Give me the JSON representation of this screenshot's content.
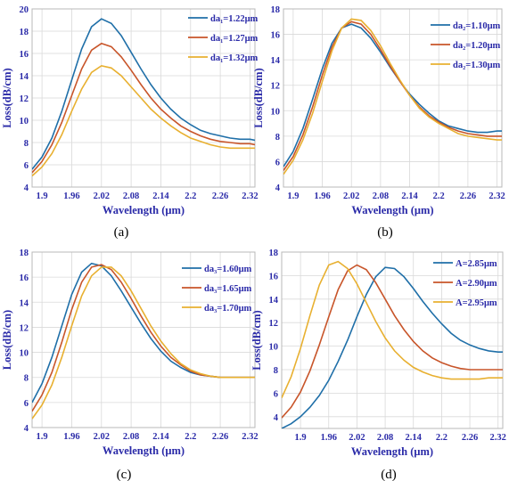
{
  "colors": {
    "series": [
      "#1f6fa8",
      "#c8552a",
      "#e8b030"
    ],
    "text": "#2a2aa8"
  },
  "chart_data": [
    {
      "type": "line",
      "panel_label": "(a)",
      "xlabel": "Wavelength (μm)",
      "ylabel": "Loss(dB/cm)",
      "xlim": [
        1.88,
        2.33
      ],
      "ylim": [
        4,
        20
      ],
      "xticks": [
        1.9,
        1.96,
        2.02,
        2.08,
        2.14,
        2.2,
        2.26,
        2.32
      ],
      "xtick_labels": [
        "1.9",
        "1.96",
        "2.02",
        "2.08",
        "2.14",
        "2.2",
        "2.26",
        "2.32"
      ],
      "yticks": [
        4,
        6,
        8,
        10,
        12,
        14,
        16,
        18,
        20
      ],
      "grid": true,
      "legend_position": "right-top",
      "series": [
        {
          "name": "da₁=1.22μm",
          "x": [
            1.88,
            1.9,
            1.92,
            1.94,
            1.96,
            1.98,
            2.0,
            2.02,
            2.04,
            2.06,
            2.08,
            2.1,
            2.12,
            2.14,
            2.16,
            2.18,
            2.2,
            2.22,
            2.24,
            2.26,
            2.28,
            2.3,
            2.32,
            2.33
          ],
          "y": [
            5.6,
            6.7,
            8.4,
            10.8,
            13.6,
            16.4,
            18.4,
            19.1,
            18.7,
            17.6,
            16.1,
            14.6,
            13.2,
            12.0,
            11.0,
            10.2,
            9.6,
            9.1,
            8.8,
            8.6,
            8.4,
            8.3,
            8.3,
            8.2
          ]
        },
        {
          "name": "da₁=1.27μm",
          "x": [
            1.88,
            1.9,
            1.92,
            1.94,
            1.96,
            1.98,
            2.0,
            2.02,
            2.04,
            2.06,
            2.08,
            2.1,
            2.12,
            2.14,
            2.16,
            2.18,
            2.2,
            2.22,
            2.24,
            2.26,
            2.28,
            2.3,
            2.32,
            2.33
          ],
          "y": [
            5.3,
            6.3,
            7.8,
            9.8,
            12.2,
            14.6,
            16.3,
            16.9,
            16.6,
            15.7,
            14.5,
            13.2,
            12.0,
            11.0,
            10.2,
            9.5,
            9.0,
            8.6,
            8.3,
            8.1,
            8.0,
            7.9,
            7.9,
            7.8
          ]
        },
        {
          "name": "da₁=1.32μm",
          "x": [
            1.88,
            1.9,
            1.92,
            1.94,
            1.96,
            1.98,
            2.0,
            2.02,
            2.04,
            2.06,
            2.08,
            2.1,
            2.12,
            2.14,
            2.16,
            2.18,
            2.2,
            2.22,
            2.24,
            2.26,
            2.28,
            2.3,
            2.32,
            2.33
          ],
          "y": [
            5.0,
            5.8,
            7.0,
            8.7,
            10.8,
            12.8,
            14.3,
            14.9,
            14.7,
            14.0,
            13.0,
            12.0,
            11.0,
            10.2,
            9.5,
            8.9,
            8.4,
            8.1,
            7.8,
            7.6,
            7.5,
            7.5,
            7.5,
            7.5
          ]
        }
      ]
    },
    {
      "type": "line",
      "panel_label": "(b)",
      "xlabel": "Wavelength (μm)",
      "ylabel": "Loss(dB/cm)",
      "xlim": [
        1.88,
        2.33
      ],
      "ylim": [
        4,
        18
      ],
      "xticks": [
        1.9,
        1.96,
        2.02,
        2.08,
        2.14,
        2.2,
        2.26,
        2.32
      ],
      "xtick_labels": [
        "1.9",
        "1.96",
        "2.02",
        "2.08",
        "2.14",
        "2.2",
        "2.26",
        "2.32"
      ],
      "yticks": [
        4,
        6,
        8,
        10,
        12,
        14,
        16,
        18
      ],
      "grid": true,
      "legend_position": "right-top",
      "series": [
        {
          "name": "da₂=1.10μm",
          "x": [
            1.88,
            1.9,
            1.92,
            1.94,
            1.96,
            1.98,
            2.0,
            2.02,
            2.04,
            2.06,
            2.08,
            2.1,
            2.12,
            2.14,
            2.16,
            2.18,
            2.2,
            2.22,
            2.24,
            2.26,
            2.28,
            2.3,
            2.32,
            2.33
          ],
          "y": [
            5.6,
            6.8,
            8.6,
            10.9,
            13.3,
            15.3,
            16.5,
            16.8,
            16.5,
            15.7,
            14.6,
            13.4,
            12.3,
            11.3,
            10.5,
            9.8,
            9.2,
            8.8,
            8.6,
            8.4,
            8.3,
            8.3,
            8.4,
            8.4
          ]
        },
        {
          "name": "da₂=1.20μm",
          "x": [
            1.88,
            1.9,
            1.92,
            1.94,
            1.96,
            1.98,
            2.0,
            2.02,
            2.04,
            2.06,
            2.08,
            2.1,
            2.12,
            2.14,
            2.16,
            2.18,
            2.2,
            2.22,
            2.24,
            2.26,
            2.28,
            2.3,
            2.32,
            2.33
          ],
          "y": [
            5.3,
            6.4,
            8.1,
            10.3,
            12.8,
            15.0,
            16.5,
            17.0,
            16.8,
            16.0,
            14.8,
            13.5,
            12.3,
            11.2,
            10.3,
            9.6,
            9.1,
            8.7,
            8.4,
            8.2,
            8.1,
            8.0,
            8.0,
            8.0
          ]
        },
        {
          "name": "da₂=1.30μm",
          "x": [
            1.88,
            1.9,
            1.92,
            1.94,
            1.96,
            1.98,
            2.0,
            2.02,
            2.04,
            2.06,
            2.08,
            2.1,
            2.12,
            2.14,
            2.16,
            2.18,
            2.2,
            2.22,
            2.24,
            2.26,
            2.28,
            2.3,
            2.32,
            2.33
          ],
          "y": [
            5.0,
            6.1,
            7.7,
            9.8,
            12.3,
            14.7,
            16.5,
            17.2,
            17.1,
            16.3,
            15.1,
            13.7,
            12.4,
            11.2,
            10.2,
            9.5,
            9.0,
            8.6,
            8.2,
            8.0,
            7.9,
            7.8,
            7.7,
            7.7
          ]
        }
      ]
    },
    {
      "type": "line",
      "panel_label": "(c)",
      "xlabel": "Wavelength (μm)",
      "ylabel": "Loss(dB/cm)",
      "xlim": [
        1.88,
        2.33
      ],
      "ylim": [
        4,
        18
      ],
      "xticks": [
        1.9,
        1.96,
        2.02,
        2.08,
        2.14,
        2.2,
        2.26,
        2.32
      ],
      "xtick_labels": [
        "1.9",
        "1.96",
        "2.02",
        "2.08",
        "2.14",
        "2.2",
        "2.26",
        "2.32"
      ],
      "yticks": [
        4,
        6,
        8,
        10,
        12,
        14,
        16,
        18
      ],
      "grid": true,
      "legend_position": "right-top",
      "series": [
        {
          "name": "da₃=1.60μm",
          "x": [
            1.88,
            1.9,
            1.92,
            1.94,
            1.96,
            1.98,
            2.0,
            2.02,
            2.04,
            2.06,
            2.08,
            2.1,
            2.12,
            2.14,
            2.16,
            2.18,
            2.2,
            2.22,
            2.24,
            2.26,
            2.28,
            2.3,
            2.32,
            2.33
          ],
          "y": [
            6.0,
            7.5,
            9.6,
            12.1,
            14.6,
            16.4,
            17.1,
            16.9,
            16.1,
            14.9,
            13.6,
            12.3,
            11.1,
            10.1,
            9.3,
            8.8,
            8.4,
            8.2,
            8.1,
            8.0,
            8.0,
            8.0,
            8.0,
            8.0
          ]
        },
        {
          "name": "da₃=1.65μm",
          "x": [
            1.88,
            1.9,
            1.92,
            1.94,
            1.96,
            1.98,
            2.0,
            2.02,
            2.04,
            2.06,
            2.08,
            2.1,
            2.12,
            2.14,
            2.16,
            2.18,
            2.2,
            2.22,
            2.24,
            2.26,
            2.28,
            2.3,
            2.32,
            2.33
          ],
          "y": [
            5.3,
            6.6,
            8.4,
            10.8,
            13.4,
            15.6,
            16.8,
            17.0,
            16.6,
            15.6,
            14.3,
            12.9,
            11.6,
            10.5,
            9.6,
            9.0,
            8.5,
            8.2,
            8.1,
            8.0,
            8.0,
            8.0,
            8.0,
            8.0
          ]
        },
        {
          "name": "da₃=1.70μm",
          "x": [
            1.88,
            1.9,
            1.92,
            1.94,
            1.96,
            1.98,
            2.0,
            2.02,
            2.04,
            2.06,
            2.08,
            2.1,
            2.12,
            2.14,
            2.16,
            2.18,
            2.2,
            2.22,
            2.24,
            2.26,
            2.28,
            2.3,
            2.32,
            2.33
          ],
          "y": [
            4.7,
            5.8,
            7.4,
            9.6,
            12.1,
            14.5,
            16.1,
            16.8,
            16.8,
            16.1,
            14.9,
            13.5,
            12.1,
            10.9,
            9.9,
            9.1,
            8.6,
            8.3,
            8.1,
            8.0,
            8.0,
            8.0,
            8.0,
            8.0
          ]
        }
      ]
    },
    {
      "type": "line",
      "panel_label": "(d)",
      "xlabel": "Wavelength (μm)",
      "ylabel": "Loss(dB/cm)",
      "xlim": [
        1.86,
        2.33
      ],
      "ylim": [
        3,
        18
      ],
      "xticks": [
        1.9,
        1.96,
        2.02,
        2.08,
        2.14,
        2.2,
        2.26,
        2.32
      ],
      "xtick_labels": [
        "1.9",
        "1.96",
        "2.02",
        "2.08",
        "2.14",
        "2.2",
        "2.26",
        "2.32"
      ],
      "yticks": [
        4,
        6,
        8,
        10,
        12,
        14,
        16,
        18
      ],
      "grid": true,
      "legend_position": "right-top",
      "series": [
        {
          "name": "A=2.85μm",
          "x": [
            1.86,
            1.88,
            1.9,
            1.92,
            1.94,
            1.96,
            1.98,
            2.0,
            2.02,
            2.04,
            2.06,
            2.08,
            2.1,
            2.12,
            2.14,
            2.16,
            2.18,
            2.2,
            2.22,
            2.24,
            2.26,
            2.28,
            2.3,
            2.32,
            2.33
          ],
          "y": [
            3.0,
            3.4,
            4.0,
            4.8,
            5.8,
            7.1,
            8.7,
            10.5,
            12.5,
            14.4,
            15.9,
            16.7,
            16.6,
            15.9,
            14.9,
            13.8,
            12.8,
            11.9,
            11.1,
            10.5,
            10.1,
            9.8,
            9.6,
            9.5,
            9.5
          ]
        },
        {
          "name": "A=2.90μm",
          "x": [
            1.86,
            1.88,
            1.9,
            1.92,
            1.94,
            1.96,
            1.98,
            2.0,
            2.02,
            2.04,
            2.06,
            2.08,
            2.1,
            2.12,
            2.14,
            2.16,
            2.18,
            2.2,
            2.22,
            2.24,
            2.26,
            2.28,
            2.3,
            2.32,
            2.33
          ],
          "y": [
            3.9,
            4.8,
            6.1,
            7.9,
            10.1,
            12.5,
            14.8,
            16.4,
            16.9,
            16.5,
            15.4,
            14.0,
            12.6,
            11.4,
            10.4,
            9.6,
            9.0,
            8.6,
            8.3,
            8.1,
            8.0,
            8.0,
            8.0,
            8.0,
            8.0
          ]
        },
        {
          "name": "A=2.95μm",
          "x": [
            1.86,
            1.88,
            1.9,
            1.92,
            1.94,
            1.96,
            1.98,
            2.0,
            2.02,
            2.04,
            2.06,
            2.08,
            2.1,
            2.12,
            2.14,
            2.16,
            2.18,
            2.2,
            2.22,
            2.24,
            2.26,
            2.28,
            2.3,
            2.32,
            2.33
          ],
          "y": [
            5.6,
            7.4,
            9.8,
            12.6,
            15.2,
            16.9,
            17.2,
            16.6,
            15.3,
            13.7,
            12.1,
            10.7,
            9.6,
            8.8,
            8.2,
            7.8,
            7.5,
            7.3,
            7.2,
            7.2,
            7.2,
            7.2,
            7.3,
            7.3,
            7.3
          ]
        }
      ]
    }
  ]
}
